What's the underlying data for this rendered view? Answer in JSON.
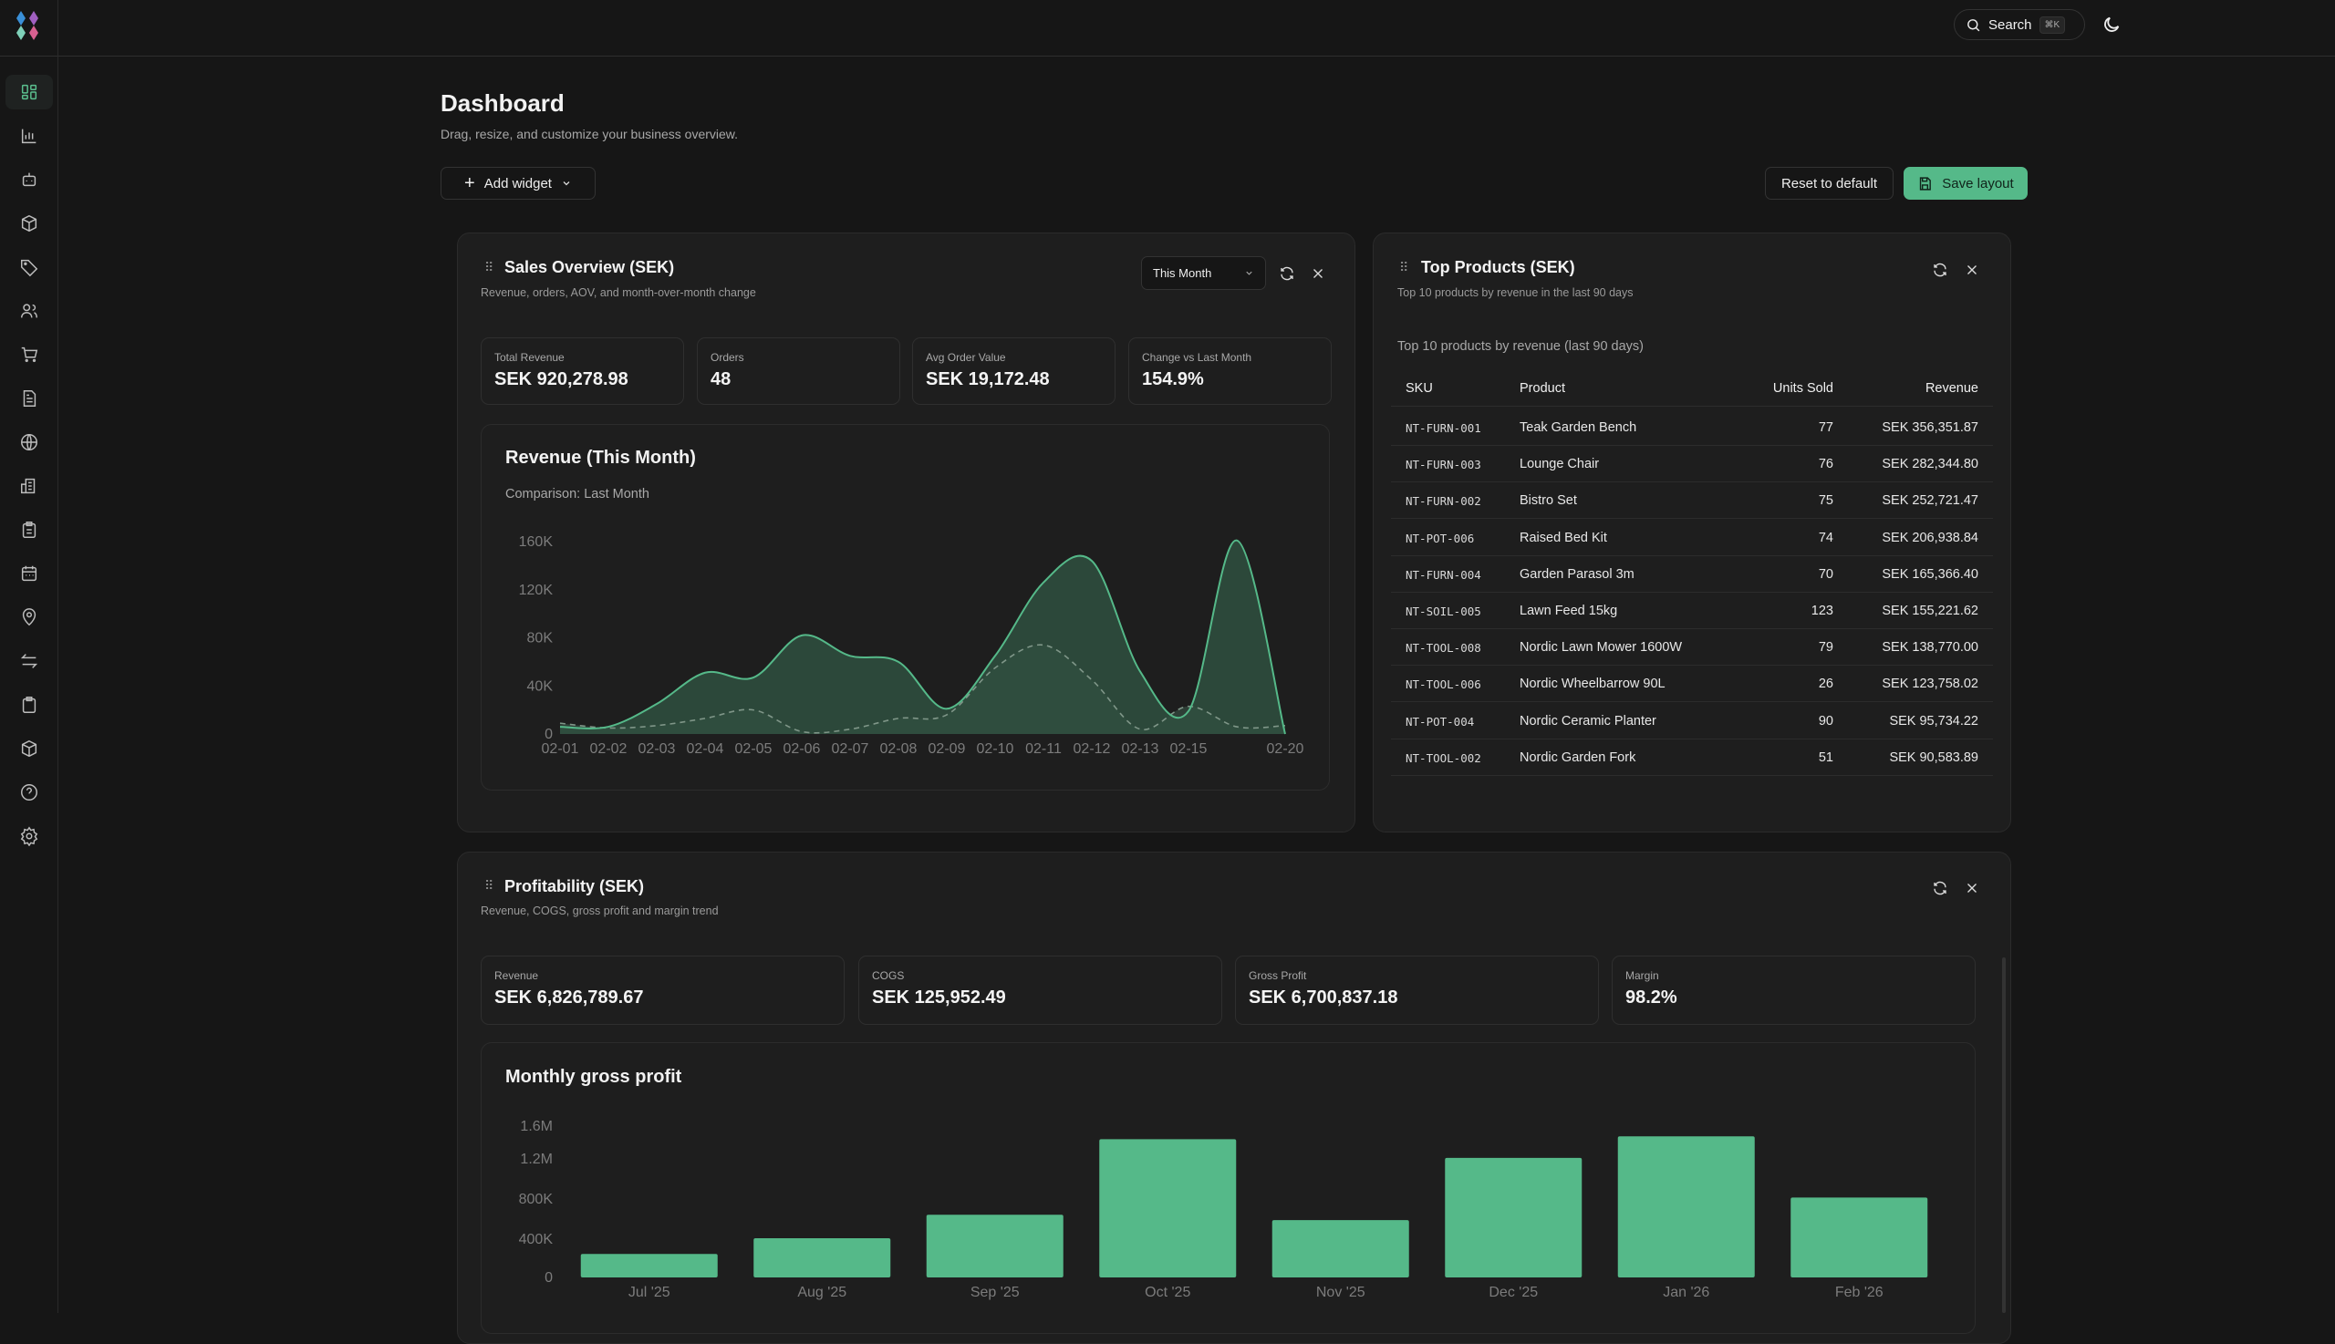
{
  "header": {
    "search_label": "Search",
    "search_shortcut": "⌘K",
    "theme_icon": "moon-icon"
  },
  "sidebar": {
    "items": [
      {
        "icon": "dashboard-icon",
        "active": true
      },
      {
        "icon": "bar-chart-icon"
      },
      {
        "icon": "bot-icon"
      },
      {
        "icon": "package-icon"
      },
      {
        "icon": "tag-icon"
      },
      {
        "icon": "users-icon"
      },
      {
        "icon": "cart-icon"
      },
      {
        "icon": "document-icon"
      },
      {
        "icon": "globe-icon"
      },
      {
        "icon": "building-icon"
      },
      {
        "icon": "clipboard-list-icon"
      },
      {
        "icon": "calendar-icon"
      },
      {
        "icon": "map-pin-icon"
      },
      {
        "icon": "transfer-icon"
      },
      {
        "icon": "clipboard-icon"
      },
      {
        "icon": "box-icon"
      },
      {
        "icon": "help-icon"
      },
      {
        "icon": "settings-icon"
      }
    ]
  },
  "page": {
    "title": "Dashboard",
    "subtitle": "Drag, resize, and customize your business overview.",
    "add_widget": "Add widget",
    "reset": "Reset to default",
    "save": "Save layout"
  },
  "colors": {
    "accent": "#55b989",
    "area_fill": "#2f5040",
    "background": "#161616",
    "card": "#1e1e1e"
  },
  "sales": {
    "title": "Sales Overview (SEK)",
    "subtitle": "Revenue, orders, AOV, and month-over-month change",
    "period": "This Month",
    "kpis": [
      {
        "label": "Total Revenue",
        "value": "SEK 920,278.98"
      },
      {
        "label": "Orders",
        "value": "48"
      },
      {
        "label": "Avg Order Value",
        "value": "SEK 19,172.48"
      },
      {
        "label": "Change vs Last Month",
        "value": "154.9%"
      }
    ],
    "chart_title": "Revenue (This Month)",
    "chart_subtitle": "Comparison: Last Month"
  },
  "top_products": {
    "title": "Top Products (SEK)",
    "subtitle": "Top 10 products by revenue in the last 90 days",
    "caption": "Top 10 products by revenue (last 90 days)",
    "columns": [
      "SKU",
      "Product",
      "Units Sold",
      "Revenue"
    ],
    "rows": [
      [
        "NT-FURN-001",
        "Teak Garden Bench",
        "77",
        "SEK 356,351.87"
      ],
      [
        "NT-FURN-003",
        "Lounge Chair",
        "76",
        "SEK 282,344.80"
      ],
      [
        "NT-FURN-002",
        "Bistro Set",
        "75",
        "SEK 252,721.47"
      ],
      [
        "NT-POT-006",
        "Raised Bed Kit",
        "74",
        "SEK 206,938.84"
      ],
      [
        "NT-FURN-004",
        "Garden Parasol 3m",
        "70",
        "SEK 165,366.40"
      ],
      [
        "NT-SOIL-005",
        "Lawn Feed 15kg",
        "123",
        "SEK 155,221.62"
      ],
      [
        "NT-TOOL-008",
        "Nordic Lawn Mower 1600W",
        "79",
        "SEK 138,770.00"
      ],
      [
        "NT-TOOL-006",
        "Nordic Wheelbarrow 90L",
        "26",
        "SEK 123,758.02"
      ],
      [
        "NT-POT-004",
        "Nordic Ceramic Planter",
        "90",
        "SEK 95,734.22"
      ],
      [
        "NT-TOOL-002",
        "Nordic Garden Fork",
        "51",
        "SEK 90,583.89"
      ]
    ]
  },
  "profitability": {
    "title": "Profitability (SEK)",
    "subtitle": "Revenue, COGS, gross profit and margin trend",
    "kpis": [
      {
        "label": "Revenue",
        "value": "SEK 6,826,789.67"
      },
      {
        "label": "COGS",
        "value": "SEK 125,952.49"
      },
      {
        "label": "Gross Profit",
        "value": "SEK 6,700,837.18"
      },
      {
        "label": "Margin",
        "value": "98.2%"
      }
    ],
    "chart_title": "Monthly gross profit"
  },
  "chart_data": [
    {
      "type": "area",
      "title": "Revenue (This Month)",
      "subtitle": "Comparison: Last Month",
      "categories": [
        "02-01",
        "02-02",
        "02-03",
        "02-04",
        "02-05",
        "02-06",
        "02-07",
        "02-08",
        "02-09",
        "02-10",
        "02-11",
        "02-12",
        "02-13",
        "02-15",
        "",
        "02-20"
      ],
      "series": [
        {
          "values": [
            6000,
            6000,
            25000,
            51000,
            47000,
            82000,
            65000,
            60000,
            21000,
            65000,
            126000,
            144000,
            52000,
            19000,
            161000,
            0
          ]
        },
        {
          "name": "Last Month",
          "values": [
            9000,
            5000,
            7000,
            13000,
            20000,
            2000,
            4000,
            13000,
            16000,
            55000,
            74000,
            45000,
            4000,
            23000,
            6000,
            7000
          ],
          "style": "dashed"
        }
      ],
      "yticks": [
        0,
        40000,
        80000,
        120000,
        160000
      ],
      "ytick_labels": [
        "0",
        "40K",
        "80K",
        "120K",
        "160K"
      ],
      "ylim": [
        0,
        165000
      ],
      "grid": false
    },
    {
      "type": "bar",
      "title": "Monthly gross profit",
      "categories": [
        "Jul '25",
        "Aug '25",
        "Sep '25",
        "Oct '25",
        "Nov '25",
        "Dec '25",
        "Jan '26",
        "Feb '26"
      ],
      "values": [
        240000,
        400000,
        640000,
        1410000,
        585000,
        1220000,
        1440000,
        815000
      ],
      "yticks": [
        0,
        400000,
        800000,
        1200000,
        1600000
      ],
      "ytick_labels": [
        "0",
        "400K",
        "800K",
        "1.2M",
        "1.6M"
      ],
      "ylim": [
        0,
        1600000
      ],
      "grid": false
    }
  ]
}
